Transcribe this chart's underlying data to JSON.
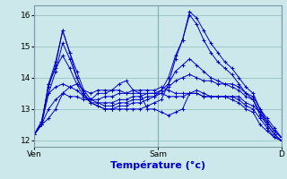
{
  "background_color": "#cce8ea",
  "grid_color": "#88bbbb",
  "line_color": "#0000cc",
  "xlabel": "Température (°c)",
  "ylim": [
    11.8,
    16.3
  ],
  "xlim": [
    0,
    48
  ],
  "yticks": [
    12,
    13,
    14,
    15,
    16
  ],
  "xtick_labels": [
    "Ven",
    "Sam",
    "D"
  ],
  "xtick_positions": [
    0,
    24,
    48
  ],
  "series": [
    [
      12.2,
      12.6,
      13.7,
      14.4,
      15.5,
      14.8,
      14.0,
      13.5,
      13.2,
      13.1,
      13.0,
      13.0,
      13.0,
      13.0,
      13.0,
      13.0,
      13.1,
      13.2,
      13.3,
      13.8,
      14.6,
      15.2,
      16.1,
      15.9,
      15.5,
      15.1,
      14.8,
      14.5,
      14.3,
      14.0,
      13.7,
      13.5,
      13.0,
      12.6,
      12.3,
      12.1
    ],
    [
      12.2,
      12.6,
      13.5,
      14.2,
      15.1,
      14.6,
      14.0,
      13.5,
      13.2,
      13.1,
      13.0,
      13.0,
      13.1,
      13.1,
      13.2,
      13.2,
      13.3,
      13.4,
      13.6,
      14.0,
      14.7,
      15.2,
      16.0,
      15.7,
      15.2,
      14.8,
      14.5,
      14.3,
      14.1,
      13.8,
      13.5,
      13.3,
      12.8,
      12.5,
      12.2,
      12.0
    ],
    [
      12.2,
      12.5,
      13.8,
      14.3,
      14.7,
      14.3,
      13.8,
      13.4,
      13.2,
      13.2,
      13.2,
      13.2,
      13.3,
      13.3,
      13.4,
      13.4,
      13.5,
      13.5,
      13.6,
      13.8,
      14.2,
      14.4,
      14.6,
      14.4,
      14.2,
      14.0,
      13.9,
      13.8,
      13.8,
      13.7,
      13.5,
      13.4,
      13.0,
      12.7,
      12.4,
      12.1
    ],
    [
      12.2,
      12.5,
      13.8,
      14.5,
      15.5,
      14.8,
      14.2,
      13.6,
      13.3,
      13.2,
      13.1,
      13.1,
      13.2,
      13.2,
      13.3,
      13.3,
      13.4,
      13.4,
      13.5,
      13.7,
      13.9,
      14.0,
      14.1,
      14.0,
      13.9,
      13.9,
      13.8,
      13.8,
      13.7,
      13.6,
      13.4,
      13.3,
      12.9,
      12.5,
      12.2,
      12.0
    ],
    [
      12.2,
      12.5,
      13.5,
      13.7,
      13.8,
      13.7,
      13.6,
      13.4,
      13.3,
      13.3,
      13.4,
      13.4,
      13.5,
      13.5,
      13.6,
      13.6,
      13.6,
      13.6,
      13.7,
      13.6,
      13.5,
      13.5,
      13.5,
      13.5,
      13.4,
      13.4,
      13.4,
      13.4,
      13.4,
      13.4,
      13.2,
      13.1,
      12.9,
      12.6,
      12.3,
      12.1
    ],
    [
      12.2,
      12.5,
      13.0,
      13.3,
      13.5,
      13.7,
      13.8,
      13.6,
      13.5,
      13.6,
      13.6,
      13.6,
      13.6,
      13.5,
      13.5,
      13.5,
      13.5,
      13.5,
      13.5,
      13.4,
      13.4,
      13.4,
      13.5,
      13.5,
      13.4,
      13.4,
      13.4,
      13.4,
      13.4,
      13.3,
      13.1,
      13.0,
      12.7,
      12.4,
      12.1,
      12.0
    ],
    [
      12.2,
      12.5,
      12.7,
      13.0,
      13.5,
      13.4,
      13.4,
      13.3,
      13.3,
      13.5,
      13.5,
      13.6,
      13.8,
      13.9,
      13.6,
      13.5,
      13.0,
      13.0,
      12.9,
      12.8,
      12.9,
      13.0,
      13.5,
      13.6,
      13.5,
      13.4,
      13.4,
      13.4,
      13.3,
      13.2,
      13.0,
      12.9,
      12.5,
      12.3,
      12.1,
      12.0
    ]
  ]
}
